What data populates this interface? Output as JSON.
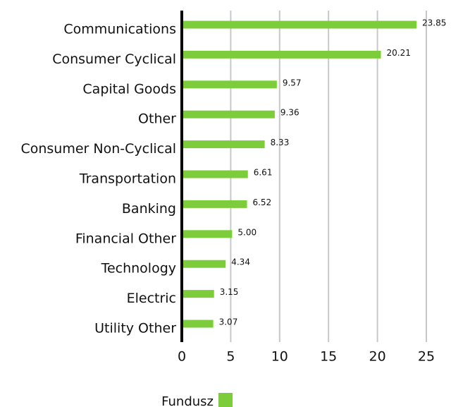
{
  "chart_data": {
    "type": "bar",
    "orientation": "horizontal",
    "categories": [
      "Communications",
      "Consumer Cyclical",
      "Capital Goods",
      "Other",
      "Consumer Non-Cyclical",
      "Transportation",
      "Banking",
      "Financial Other",
      "Technology",
      "Electric",
      "Utility Other"
    ],
    "series": [
      {
        "name": "Fundusz",
        "color": "#7dcc3c",
        "values": [
          23.85,
          20.21,
          9.57,
          9.36,
          8.33,
          6.61,
          6.52,
          5.0,
          4.34,
          3.15,
          3.07
        ],
        "value_labels": [
          "23.85",
          "20.21",
          "9.57",
          "9.36",
          "8.33",
          "6.61",
          "6.52",
          "5.00",
          "4.34",
          "3.15",
          "3.07"
        ]
      }
    ],
    "xlim": [
      0,
      25
    ],
    "xticks": [
      0,
      5,
      10,
      15,
      20,
      25
    ],
    "grid": true,
    "legend": "bottom"
  }
}
